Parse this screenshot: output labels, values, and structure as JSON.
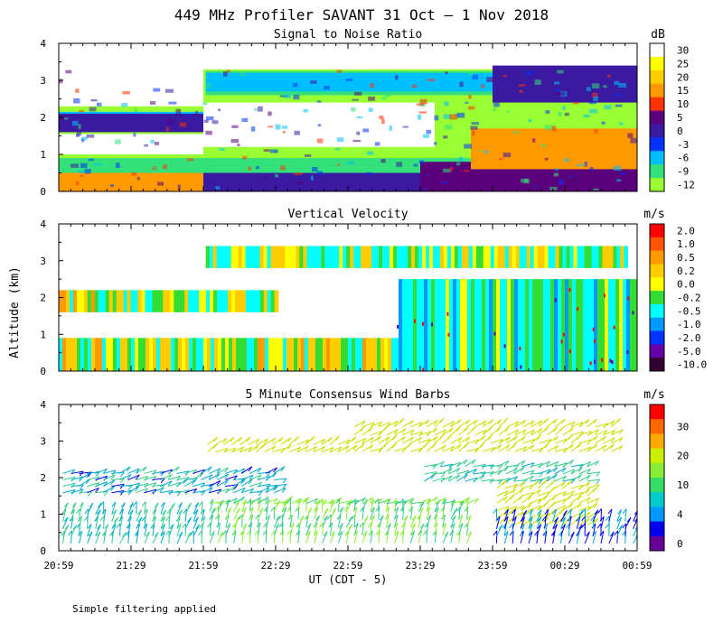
{
  "title": "449 MHz Profiler SAVANT 31 Oct –  1 Nov 2018",
  "ylabel": "Altitude (km)",
  "xlabel": "UT  (CDT - 5)",
  "footnote": "Simple filtering applied",
  "xticks": [
    "20:59",
    "21:29",
    "21:59",
    "22:29",
    "22:59",
    "23:29",
    "23:59",
    "00:29",
    "00:59"
  ],
  "yticks": [
    "0",
    "1",
    "2",
    "3",
    "4"
  ],
  "panels": [
    {
      "title": "Signal to Noise Ratio",
      "unit": "dB",
      "colorbar": {
        "labels": [
          "30",
          "25",
          "20",
          "15",
          "10",
          "5",
          "0",
          "-3",
          "-6",
          "-9",
          "-12"
        ],
        "colors": [
          "#ffffff",
          "#ffff00",
          "#ffcc00",
          "#ff9900",
          "#ff3300",
          "#5a007a",
          "#3a1aa0",
          "#0033ff",
          "#00bfff",
          "#33e07a",
          "#99ff33"
        ]
      }
    },
    {
      "title": "Vertical Velocity",
      "unit": "m/s",
      "colorbar": {
        "labels": [
          "2.0",
          "1.0",
          "0.5",
          "0.2",
          "0.0",
          "-0.2",
          "-0.5",
          "-1.0",
          "-2.0",
          "-5.0",
          "-10.0"
        ],
        "colors": [
          "#ff0000",
          "#ff5500",
          "#ff9900",
          "#ffcc00",
          "#ffff00",
          "#33dd33",
          "#00ffff",
          "#0099ff",
          "#0033ff",
          "#6600aa",
          "#330033"
        ]
      }
    },
    {
      "title": "5 Minute Consensus Wind Barbs",
      "unit": "m/s",
      "colorbar": {
        "labels": [
          "30",
          "20",
          "10",
          "4",
          "0"
        ],
        "colors": [
          "#ff0000",
          "#ff6600",
          "#ffaa00",
          "#ccee00",
          "#88ee33",
          "#33dd66",
          "#00cccc",
          "#0099ff",
          "#0000ee",
          "#660099"
        ]
      }
    }
  ],
  "chart_data": [
    {
      "type": "heatmap",
      "title": "Signal to Noise Ratio",
      "units": "dB",
      "x_range": [
        "20:59",
        "00:59"
      ],
      "y_range_km": [
        0,
        4
      ],
      "regions_dB": [
        {
          "x": [
            "20:59",
            "21:59"
          ],
          "alt_km": [
            0.0,
            0.5
          ],
          "snr": 15
        },
        {
          "x": [
            "21:59",
            "23:59"
          ],
          "alt_km": [
            0.0,
            0.5
          ],
          "snr": 3
        },
        {
          "x": [
            "23:29",
            "00:59"
          ],
          "alt_km": [
            0.0,
            0.8
          ],
          "snr": 5
        },
        {
          "x": [
            "23:50",
            "00:59"
          ],
          "alt_km": [
            0.6,
            1.7
          ],
          "snr": 17
        },
        {
          "x": [
            "20:59",
            "21:59"
          ],
          "alt_km": [
            1.6,
            2.1
          ],
          "snr": 4
        },
        {
          "x": [
            "22:00",
            "23:59"
          ],
          "alt_km": [
            2.7,
            3.2
          ],
          "snr": -6
        },
        {
          "x": [
            "23:59",
            "00:59"
          ],
          "alt_km": [
            2.4,
            3.4
          ],
          "snr": 2
        }
      ]
    },
    {
      "type": "heatmap",
      "title": "Vertical Velocity",
      "units": "m/s",
      "x_range": [
        "20:59",
        "00:59"
      ],
      "y_range_km": [
        0,
        4
      ],
      "regions_ms": [
        {
          "x": [
            "20:59",
            "23:20"
          ],
          "alt_km": [
            0.0,
            0.9
          ],
          "w": 0.0
        },
        {
          "x": [
            "20:59",
            "22:30"
          ],
          "alt_km": [
            1.6,
            2.2
          ],
          "w": 0.0
        },
        {
          "x": [
            "22:00",
            "00:55"
          ],
          "alt_km": [
            2.8,
            3.4
          ],
          "w": -0.1
        },
        {
          "x": [
            "23:20",
            "00:59"
          ],
          "alt_km": [
            0.0,
            2.5
          ],
          "w": -0.3
        }
      ]
    },
    {
      "type": "wind_barbs",
      "title": "5 Minute Consensus Wind Barbs",
      "units": "m/s",
      "x_range": [
        "20:59",
        "00:59"
      ],
      "y_range_km": [
        0,
        4
      ],
      "layers": [
        {
          "x": [
            "20:59",
            "22:00"
          ],
          "alt_km": [
            0.1,
            1.1
          ],
          "speed": 6
        },
        {
          "x": [
            "22:00",
            "23:50"
          ],
          "alt_km": [
            0.1,
            1.4
          ],
          "speed": 9
        },
        {
          "x": [
            "20:59",
            "22:30"
          ],
          "alt_km": [
            1.5,
            2.2
          ],
          "speed": 5
        },
        {
          "x": [
            "21:59",
            "23:00"
          ],
          "alt_km": [
            2.6,
            3.0
          ],
          "speed": 17
        },
        {
          "x": [
            "23:00",
            "00:50"
          ],
          "alt_km": [
            2.6,
            3.5
          ],
          "speed": 17
        },
        {
          "x": [
            "23:29",
            "00:40"
          ],
          "alt_km": [
            1.8,
            2.4
          ],
          "speed": 7
        },
        {
          "x": [
            "23:59",
            "00:40"
          ],
          "alt_km": [
            0.6,
            1.8
          ],
          "speed": 18
        },
        {
          "x": [
            "23:59",
            "00:59"
          ],
          "alt_km": [
            0.1,
            0.9
          ],
          "speed": 4
        }
      ]
    }
  ]
}
